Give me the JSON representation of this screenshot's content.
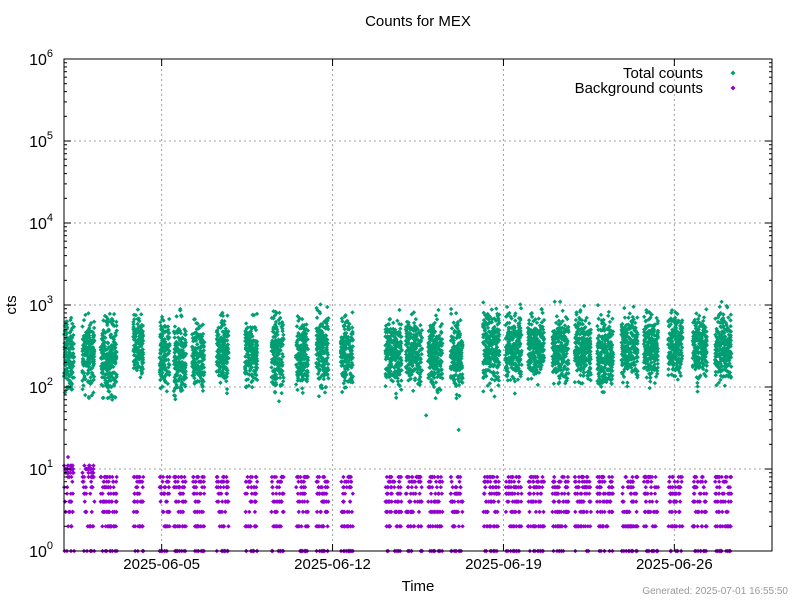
{
  "chart_data": {
    "type": "scatter",
    "title": "Counts for MEX",
    "xlabel": "Time",
    "ylabel": "cts",
    "yscale": "log",
    "ylim": [
      1,
      1000000
    ],
    "xlim": [
      "2025-06-01",
      "2025-06-30"
    ],
    "x_ticks": [
      "2025-06-05",
      "2025-06-12",
      "2025-06-19",
      "2025-06-26"
    ],
    "y_ticks": [
      {
        "value": 1,
        "base": "10",
        "exp": "0"
      },
      {
        "value": 10,
        "base": "10",
        "exp": "1"
      },
      {
        "value": 100,
        "base": "10",
        "exp": "2"
      },
      {
        "value": 1000,
        "base": "10",
        "exp": "3"
      },
      {
        "value": 10000,
        "base": "10",
        "exp": "4"
      },
      {
        "value": 100000,
        "base": "10",
        "exp": "5"
      },
      {
        "value": 1000000,
        "base": "10",
        "exp": "6"
      }
    ],
    "grid": true,
    "legend_position": "top-right",
    "series": [
      {
        "name": "Total counts",
        "color": "#009e73",
        "clusters": [
          {
            "start": "2025-06-01T00:00",
            "end": "2025-06-01T10:00",
            "min": 60,
            "max": 1000
          },
          {
            "start": "2025-06-01T18:00",
            "end": "2025-06-02T06:00",
            "min": 60,
            "max": 1050
          },
          {
            "start": "2025-06-02T12:00",
            "end": "2025-06-03T04:00",
            "min": 48,
            "max": 1100
          },
          {
            "start": "2025-06-03T20:00",
            "end": "2025-06-04T06:00",
            "min": 80,
            "max": 1050
          },
          {
            "start": "2025-06-04T22:00",
            "end": "2025-06-05T08:00",
            "min": 55,
            "max": 1100
          },
          {
            "start": "2025-06-05T12:00",
            "end": "2025-06-06T00:00",
            "min": 45,
            "max": 1100
          },
          {
            "start": "2025-06-06T06:00",
            "end": "2025-06-06T18:00",
            "min": 60,
            "max": 1000
          },
          {
            "start": "2025-06-07T06:00",
            "end": "2025-06-07T18:00",
            "min": 70,
            "max": 1050
          },
          {
            "start": "2025-06-08T10:00",
            "end": "2025-06-08T22:00",
            "min": 70,
            "max": 1000
          },
          {
            "start": "2025-06-09T12:00",
            "end": "2025-06-10T00:00",
            "min": 55,
            "max": 1250
          },
          {
            "start": "2025-06-10T12:00",
            "end": "2025-06-11T00:00",
            "min": 60,
            "max": 1150
          },
          {
            "start": "2025-06-11T08:00",
            "end": "2025-06-11T20:00",
            "min": 55,
            "max": 1250
          },
          {
            "start": "2025-06-12T08:00",
            "end": "2025-06-12T20:00",
            "min": 65,
            "max": 1100
          },
          {
            "start": "2025-06-14T04:00",
            "end": "2025-06-14T20:00",
            "min": 60,
            "max": 1150
          },
          {
            "start": "2025-06-15T00:00",
            "end": "2025-06-15T16:00",
            "min": 70,
            "max": 1000
          },
          {
            "start": "2025-06-15T22:00",
            "end": "2025-06-16T12:00",
            "min": 60,
            "max": 1050
          },
          {
            "start": "2025-06-16T20:00",
            "end": "2025-06-17T08:00",
            "min": 55,
            "max": 1100
          },
          {
            "start": "2025-06-18T04:00",
            "end": "2025-06-18T20:00",
            "min": 70,
            "max": 1300
          },
          {
            "start": "2025-06-19T02:00",
            "end": "2025-06-19T18:00",
            "min": 75,
            "max": 1200
          },
          {
            "start": "2025-06-20T00:00",
            "end": "2025-06-20T16:00",
            "min": 85,
            "max": 1150
          },
          {
            "start": "2025-06-21T00:00",
            "end": "2025-06-21T16:00",
            "min": 75,
            "max": 1150
          },
          {
            "start": "2025-06-21T22:00",
            "end": "2025-06-22T14:00",
            "min": 80,
            "max": 1250
          },
          {
            "start": "2025-06-22T20:00",
            "end": "2025-06-23T12:00",
            "min": 65,
            "max": 1150
          },
          {
            "start": "2025-06-23T20:00",
            "end": "2025-06-24T12:00",
            "min": 80,
            "max": 1100
          },
          {
            "start": "2025-06-24T18:00",
            "end": "2025-06-25T08:00",
            "min": 85,
            "max": 1100
          },
          {
            "start": "2025-06-25T18:00",
            "end": "2025-06-26T08:00",
            "min": 95,
            "max": 1100
          },
          {
            "start": "2025-06-26T18:00",
            "end": "2025-06-27T08:00",
            "min": 80,
            "max": 1250
          },
          {
            "start": "2025-06-27T16:00",
            "end": "2025-06-28T08:00",
            "min": 75,
            "max": 1300
          }
        ],
        "outliers": [
          {
            "x": "2025-06-17T04:00",
            "y": 30
          },
          {
            "x": "2025-06-15T20:00",
            "y": 45
          }
        ]
      },
      {
        "name": "Background counts",
        "color": "#9400d3",
        "levels": [
          1,
          2,
          3,
          4,
          5,
          6,
          7,
          8,
          9,
          10,
          11
        ],
        "outliers": [
          {
            "x": "2025-06-01T04:00",
            "y": 14
          }
        ]
      }
    ]
  },
  "footer": {
    "generated": "Generated: 2025-07-01 16:55:50"
  }
}
